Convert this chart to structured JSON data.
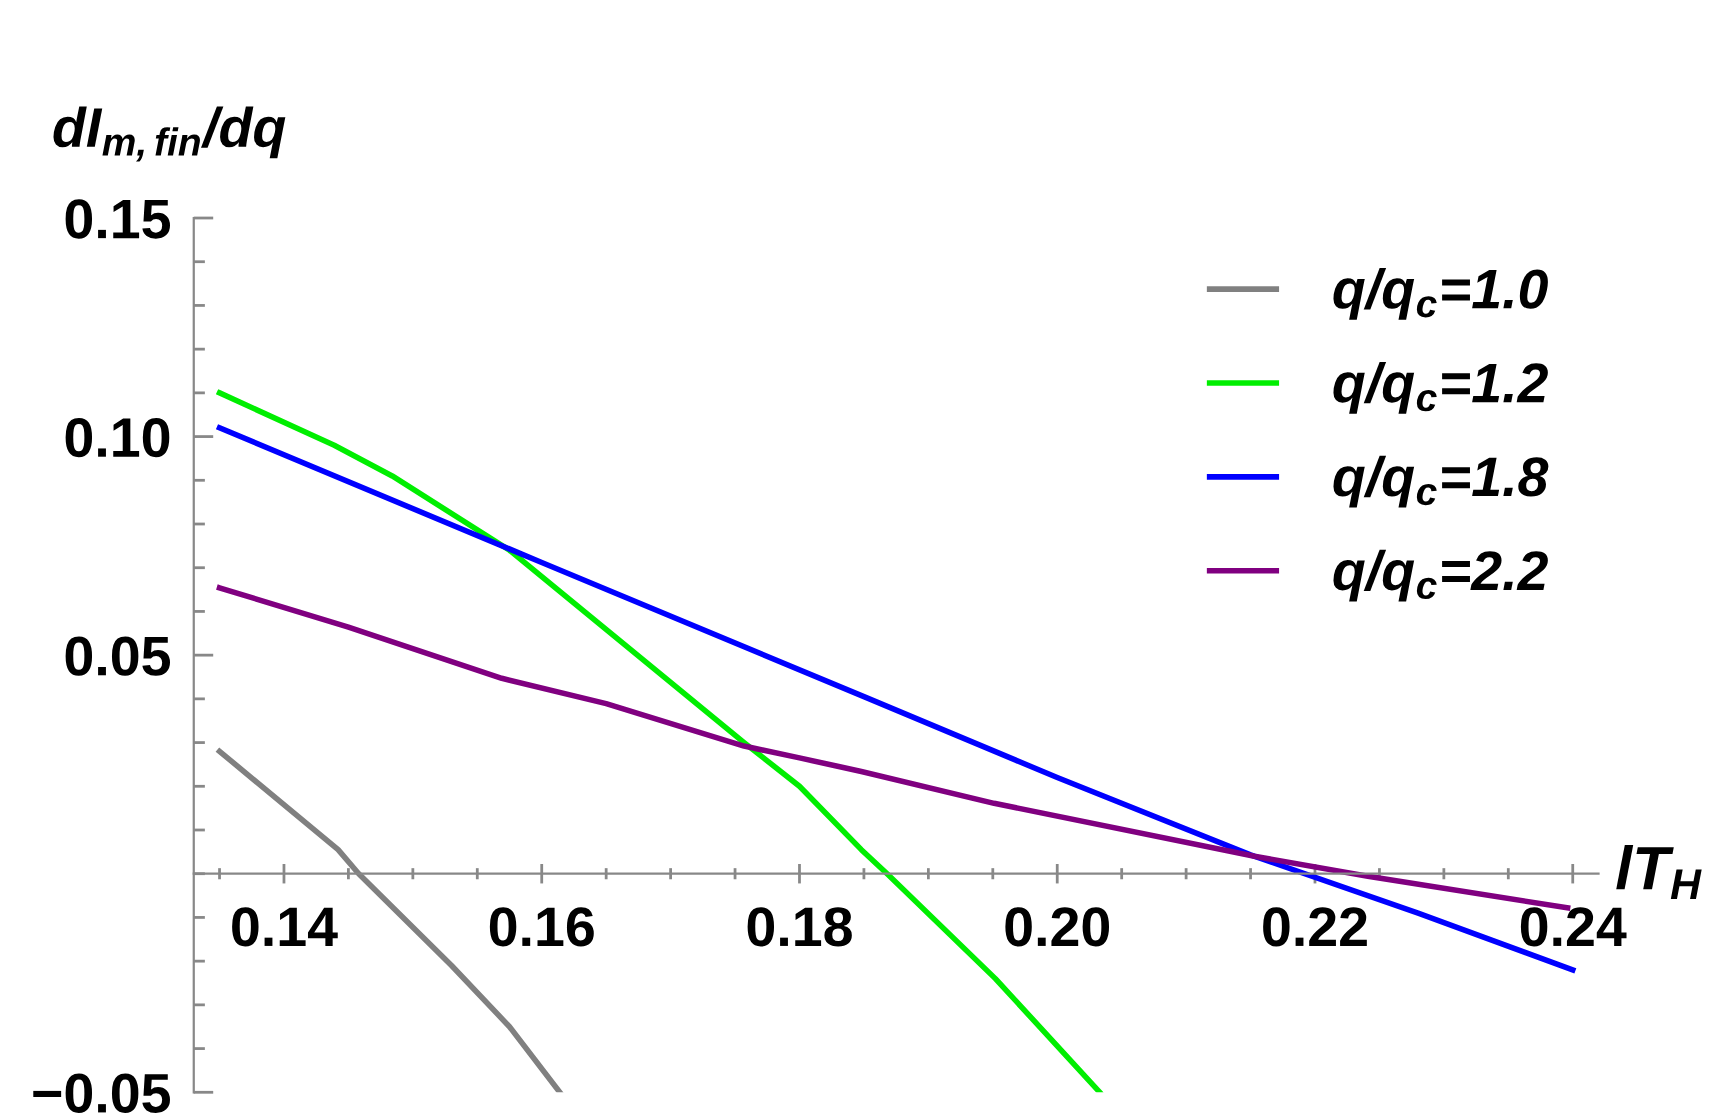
{
  "chart_data": {
    "type": "line",
    "xlabel": "lT$_{H}$",
    "ylabel": "dI$_{m,fin}$/dq",
    "xlim": [
      0.133,
      0.242
    ],
    "ylim": [
      -0.05,
      0.15
    ],
    "xticks": [
      0.14,
      0.16,
      0.18,
      {
        "value": 0.2,
        "label": "0.20"
      },
      0.22,
      0.24,
      {
        "value": 0.135,
        "label": null
      },
      {
        "value": 0.145,
        "label": null
      },
      {
        "value": 0.15,
        "label": null
      },
      {
        "value": 0.155,
        "label": null
      },
      {
        "value": 0.165,
        "label": null
      },
      {
        "value": 0.17,
        "label": null
      },
      {
        "value": 0.175,
        "label": null
      },
      {
        "value": 0.185,
        "label": null
      },
      {
        "value": 0.19,
        "label": null
      },
      {
        "value": 0.195,
        "label": null
      },
      {
        "value": 0.205,
        "label": null
      },
      {
        "value": 0.21,
        "label": null
      },
      {
        "value": 0.215,
        "label": null
      },
      {
        "value": 0.225,
        "label": null
      },
      {
        "value": 0.23,
        "label": null
      },
      {
        "value": 0.235,
        "label": null
      }
    ],
    "yticks": [
      {
        "value": -0.05,
        "label": "−0.05"
      },
      {
        "value": 0.05,
        "label": "0.05"
      },
      {
        "value": 0.1,
        "label": "0.10"
      },
      {
        "value": 0.15,
        "label": "0.15"
      },
      {
        "value": 0,
        "label": null
      },
      {
        "value": -0.04,
        "label": null
      },
      {
        "value": -0.03,
        "label": null
      },
      {
        "value": -0.02,
        "label": null
      },
      {
        "value": -0.01,
        "label": null
      },
      {
        "value": 0.01,
        "label": null
      },
      {
        "value": 0.02,
        "label": null
      },
      {
        "value": 0.03,
        "label": null
      },
      {
        "value": 0.04,
        "label": null
      },
      {
        "value": 0.06,
        "label": null
      },
      {
        "value": 0.07,
        "label": null
      },
      {
        "value": 0.08,
        "label": null
      },
      {
        "value": 0.09,
        "label": null
      },
      {
        "value": 0.11,
        "label": null
      },
      {
        "value": 0.12,
        "label": null
      },
      {
        "value": 0.13,
        "label": null
      },
      {
        "value": 0.14,
        "label": null
      }
    ],
    "grid": false,
    "legend": "top right",
    "marker": "none",
    "line_style": "solid",
    "series": [
      {
        "name": "q/q$_{c}$=1.0",
        "color": "#808080",
        "x": [
          0.135,
          0.1442,
          0.1458,
          0.153,
          0.1575,
          0.1614
        ],
        "values": [
          0.028,
          0.0055,
          0.0,
          -0.021,
          -0.035,
          -0.05
        ]
      },
      {
        "name": "q/q$_{c}$=1.2",
        "color": "#00ee00",
        "x": [
          0.135,
          0.1439,
          0.1484,
          0.1575,
          0.1757,
          0.18,
          0.1848,
          0.1868,
          0.1952,
          0.2033
        ],
        "values": [
          0.11,
          0.098,
          0.091,
          0.074,
          0.03,
          0.02,
          0.0055,
          0.0,
          -0.024,
          -0.05
        ]
      },
      {
        "name": "q/q$_{c}$=1.8",
        "color": "#0000ff",
        "x": [
          0.135,
          0.16,
          0.185,
          0.2,
          0.215,
          0.228,
          0.24
        ],
        "values": [
          0.102,
          0.0712,
          0.0405,
          0.022,
          0.0043,
          -0.009,
          -0.022
        ]
      },
      {
        "name": "q/q$_{c}$=2.2",
        "color": "#800080",
        "x": [
          0.135,
          0.145,
          0.1569,
          0.165,
          0.1757,
          0.18,
          0.1848,
          0.1951,
          0.2153,
          0.2241,
          0.2396
        ],
        "values": [
          0.0654,
          0.0564,
          0.0447,
          0.0389,
          0.0292,
          0.0265,
          0.0234,
          0.0161,
          0.004,
          -0.0006,
          -0.0078
        ]
      }
    ]
  }
}
